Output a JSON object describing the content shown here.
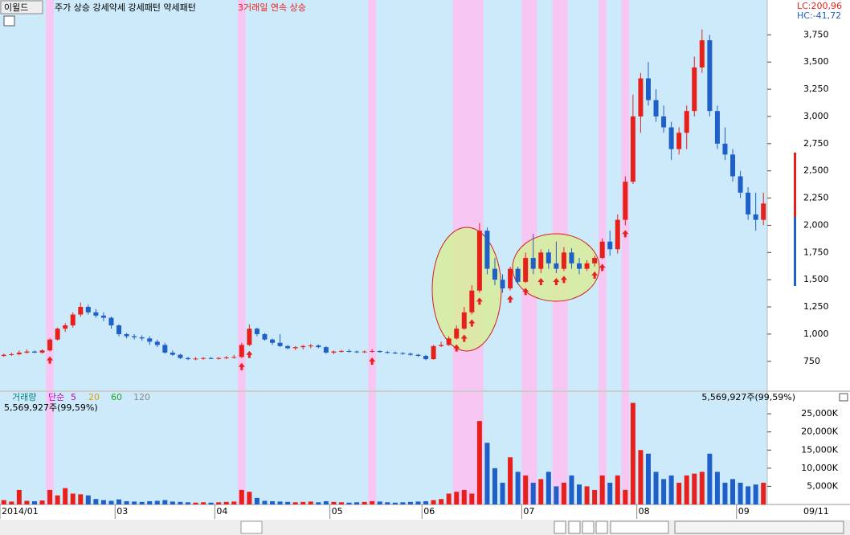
{
  "toolbar": {
    "button": "이윌드",
    "legend": "주가 상승 강세약세 강세패턴  약세패턴",
    "signal": "3거래일 연속 상승"
  },
  "chart_data": [
    {
      "type": "candlestick",
      "lc": "LC:200,96",
      "hc": "HC:-41,72",
      "open": [
        800,
        810,
        815,
        830,
        840,
        830,
        850,
        950,
        1050,
        1080,
        1180,
        1250,
        1200,
        1170,
        1150,
        1080,
        1000,
        980,
        970,
        960,
        930,
        900,
        830,
        810,
        780,
        770,
        775,
        780,
        775,
        780,
        785,
        790,
        900,
        1050,
        1000,
        950,
        920,
        890,
        870,
        880,
        890,
        895,
        880,
        830,
        840,
        845,
        840,
        835,
        840,
        845,
        835,
        830,
        825,
        820,
        810,
        800,
        770,
        890,
        900,
        960,
        1050,
        1200,
        1400,
        1950,
        1600,
        1500,
        1420,
        1600,
        1480,
        1700,
        1600,
        1750,
        1650,
        1600,
        1750,
        1650,
        1600,
        1650,
        1700,
        1850,
        1780,
        2050,
        2400,
        3000,
        3350,
        3150,
        3000,
        2900,
        2700,
        2850,
        3050,
        3450,
        3700,
        3050,
        2750,
        2650,
        2450,
        2300,
        2100,
        2050
      ],
      "high": [
        820,
        830,
        850,
        860,
        850,
        860,
        960,
        1060,
        1100,
        1200,
        1290,
        1270,
        1230,
        1200,
        1160,
        1090,
        1010,
        1000,
        990,
        980,
        950,
        920,
        850,
        820,
        790,
        790,
        790,
        790,
        790,
        800,
        810,
        920,
        1090,
        1060,
        1010,
        960,
        1000,
        900,
        890,
        900,
        910,
        905,
        890,
        850,
        855,
        860,
        850,
        850,
        860,
        850,
        845,
        840,
        835,
        830,
        820,
        810,
        900,
        930,
        980,
        1080,
        1250,
        1450,
        2020,
        1980,
        1700,
        1550,
        1620,
        1620,
        1750,
        1920,
        1780,
        1780,
        1850,
        1800,
        1790,
        1700,
        1680,
        1720,
        1880,
        1950,
        2100,
        2450,
        3200,
        3400,
        3500,
        3250,
        3100,
        2950,
        2900,
        3100,
        3550,
        3800,
        3750,
        3100,
        2900,
        2700,
        2500,
        2350,
        2300,
        2300
      ],
      "low": [
        790,
        800,
        805,
        820,
        825,
        820,
        840,
        940,
        1020,
        1060,
        1160,
        1180,
        1150,
        1120,
        1050,
        980,
        960,
        950,
        940,
        900,
        880,
        820,
        800,
        770,
        760,
        760,
        765,
        770,
        765,
        770,
        775,
        780,
        890,
        980,
        940,
        900,
        880,
        860,
        855,
        860,
        870,
        870,
        820,
        815,
        830,
        830,
        825,
        825,
        830,
        830,
        820,
        815,
        810,
        800,
        790,
        760,
        765,
        880,
        890,
        950,
        1040,
        1180,
        1380,
        1550,
        1450,
        1380,
        1400,
        1460,
        1470,
        1550,
        1560,
        1600,
        1560,
        1580,
        1600,
        1550,
        1580,
        1620,
        1690,
        1720,
        1740,
        2000,
        2380,
        2850,
        3100,
        2950,
        2850,
        2600,
        2650,
        2700,
        3000,
        3400,
        3000,
        2700,
        2600,
        2400,
        2250,
        2050,
        1950,
        2000
      ],
      "close": [
        810,
        815,
        830,
        840,
        830,
        850,
        950,
        1050,
        1080,
        1180,
        1250,
        1200,
        1170,
        1150,
        1080,
        1000,
        980,
        970,
        960,
        930,
        900,
        830,
        810,
        780,
        770,
        775,
        780,
        775,
        780,
        785,
        790,
        900,
        1050,
        1000,
        950,
        920,
        890,
        870,
        880,
        890,
        895,
        880,
        830,
        840,
        845,
        840,
        835,
        840,
        845,
        835,
        830,
        825,
        820,
        810,
        800,
        770,
        890,
        900,
        960,
        1050,
        1200,
        1400,
        1950,
        1600,
        1500,
        1420,
        1600,
        1480,
        1700,
        1600,
        1750,
        1650,
        1600,
        1750,
        1650,
        1600,
        1650,
        1700,
        1850,
        1780,
        2050,
        2400,
        3000,
        3350,
        3150,
        3000,
        2900,
        2700,
        2850,
        3050,
        3450,
        3700,
        3050,
        2750,
        2650,
        2450,
        2300,
        2100,
        2050,
        2200
      ],
      "ylim": [
        490,
        4070
      ],
      "yticks": [
        {
          "value": 750,
          "label": "750"
        },
        {
          "value": 1000,
          "label": "1,000"
        },
        {
          "value": 1250,
          "label": "1,250"
        },
        {
          "value": 1500,
          "label": "1,500"
        },
        {
          "value": 1750,
          "label": "1,750"
        },
        {
          "value": 2000,
          "label": "2,000"
        },
        {
          "value": 2250,
          "label": "2,250"
        },
        {
          "value": 2500,
          "label": "2,500"
        },
        {
          "value": 2750,
          "label": "2,750"
        },
        {
          "value": 3000,
          "label": "3,000"
        },
        {
          "value": 3250,
          "label": "3,250"
        },
        {
          "value": 3500,
          "label": "3,500"
        },
        {
          "value": 3750,
          "label": "3,750"
        }
      ],
      "up_color": "#e8201c",
      "down_color": "#1f5fc8",
      "background": "#cdeafa",
      "highlight_color": "#f7c6f2",
      "highlight_bands": [
        [
          6,
          6
        ],
        [
          31,
          31
        ],
        [
          48,
          48
        ],
        [
          59,
          62
        ],
        [
          68,
          69
        ],
        [
          72,
          73
        ],
        [
          78,
          78
        ],
        [
          81,
          81
        ]
      ],
      "signal_indices": [
        6,
        31,
        32,
        48,
        59,
        60,
        61,
        62,
        66,
        68,
        70,
        72,
        73,
        77,
        78,
        81
      ]
    },
    {
      "type": "bar",
      "legend_title": "거래량",
      "legend_kind": "단순",
      "ma_labels": [
        "5",
        "20",
        "60",
        "120"
      ],
      "ma_colors": [
        "#c000c0",
        "#e0a000",
        "#20a020",
        "#888888"
      ],
      "value_label": "5,569,927주(99,59%)",
      "values": [
        1200,
        800,
        4000,
        1000,
        900,
        1100,
        4000,
        2500,
        4500,
        3000,
        2800,
        2500,
        1500,
        1200,
        1000,
        1400,
        900,
        800,
        700,
        900,
        1000,
        1200,
        800,
        700,
        600,
        500,
        600,
        500,
        600,
        700,
        800,
        4000,
        3500,
        1800,
        1000,
        900,
        800,
        700,
        600,
        700,
        800,
        600,
        900,
        700,
        600,
        500,
        600,
        700,
        900,
        800,
        600,
        500,
        600,
        700,
        800,
        900,
        1200,
        1500,
        3000,
        3500,
        4000,
        3000,
        23000,
        17000,
        10000,
        6000,
        13000,
        9000,
        8000,
        6000,
        7000,
        9000,
        5000,
        6000,
        8000,
        5500,
        5000,
        4000,
        8000,
        6000,
        8000,
        4000,
        28000,
        15000,
        14000,
        9000,
        7000,
        8000,
        6000,
        8000,
        8500,
        9000,
        14000,
        9000,
        6000,
        7000,
        6000,
        5000,
        5500,
        6000
      ],
      "ylim": [
        0,
        31000
      ],
      "yticks": [
        {
          "value": 5000,
          "label": "5,000K"
        },
        {
          "value": 10000,
          "label": "10,000K"
        },
        {
          "value": 15000,
          "label": "15,000K"
        },
        {
          "value": 20000,
          "label": "20,000K"
        },
        {
          "value": 25000,
          "label": "25,000K"
        }
      ],
      "xticks": [
        {
          "value": 0,
          "label": "2014/01"
        },
        {
          "value": 15,
          "label": "03"
        },
        {
          "value": 28,
          "label": "04"
        },
        {
          "value": 43,
          "label": "05"
        },
        {
          "value": 55,
          "label": "06"
        },
        {
          "value": 68,
          "label": "07"
        },
        {
          "value": 83,
          "label": "08"
        },
        {
          "value": 96,
          "label": "09"
        }
      ],
      "x_end_label": "09/11"
    }
  ]
}
